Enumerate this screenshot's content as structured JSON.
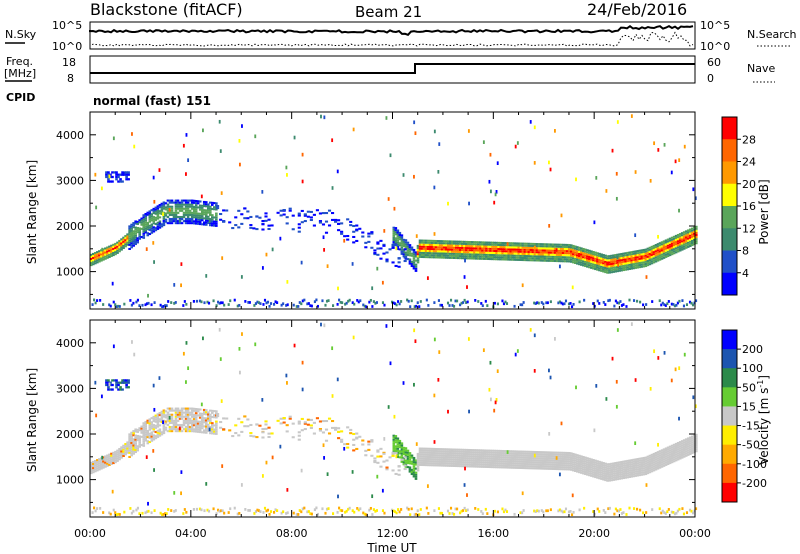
{
  "header": {
    "station": "Blackstone (fitACF)",
    "beam": "Beam 21",
    "date": "24/Feb/2016"
  },
  "noise_panel": {
    "left_label": "N.Sky",
    "right_label": "N.Search",
    "left_ticks": [
      "10^5",
      "10^0"
    ],
    "right_ticks": [
      "10^5",
      "10^0"
    ]
  },
  "freq_panel": {
    "left_label_line1": "Freq.",
    "left_label_line2": "[MHz]",
    "right_label": "Nave",
    "left_ticks": [
      "18",
      "8"
    ],
    "right_ticks": [
      "60",
      "0"
    ]
  },
  "cpid": {
    "label": "CPID",
    "value": "normal (fast) 151"
  },
  "colors": {
    "power_scale": [
      "#0000ff",
      "#2050c8",
      "#3c8a6e",
      "#5aa55a",
      "#ffff00",
      "#ff9900",
      "#ff6600",
      "#ff0000"
    ],
    "velocity_scale": [
      "#0000ff",
      "#1c55b0",
      "#2b8a4a",
      "#66cc33",
      "#c8c8c8",
      "#ffee00",
      "#ffaa00",
      "#ff6600",
      "#ff0000"
    ]
  },
  "chart_data": [
    {
      "type": "heatmap",
      "name": "power",
      "ylabel": "Slant Range [km]",
      "yticks": [
        1000,
        2000,
        3000,
        4000
      ],
      "ylim": [
        180,
        4500
      ],
      "xticks": [
        "00:00",
        "04:00",
        "08:00",
        "12:00",
        "16:00",
        "20:00",
        "00:00"
      ],
      "xlim_hours": [
        0,
        24
      ],
      "colorbar": {
        "label": "Power [dB]",
        "ticks": [
          "28",
          "24",
          "20",
          "16",
          "12",
          "8",
          "4"
        ]
      },
      "echo_band_center_km": [
        {
          "hour": 0.0,
          "range": 1250
        },
        {
          "hour": 1.0,
          "range": 1500
        },
        {
          "hour": 2.0,
          "range": 1950
        },
        {
          "hour": 3.0,
          "range": 2300
        },
        {
          "hour": 4.0,
          "range": 2300
        },
        {
          "hour": 12.0,
          "range": 1800
        },
        {
          "hour": 12.9,
          "range": 1200
        },
        {
          "hour": 13.0,
          "range": 1500
        },
        {
          "hour": 16.0,
          "range": 1450
        },
        {
          "hour": 19.0,
          "range": 1400
        },
        {
          "hour": 20.5,
          "range": 1150
        },
        {
          "hour": 22.0,
          "range": 1300
        },
        {
          "hour": 24.0,
          "range": 1800
        }
      ]
    },
    {
      "type": "heatmap",
      "name": "velocity",
      "ylabel": "Slant Range [km]",
      "yticks": [
        1000,
        2000,
        3000,
        4000
      ],
      "ylim": [
        180,
        4500
      ],
      "xticks": [
        "00:00",
        "04:00",
        "08:00",
        "12:00",
        "16:00",
        "20:00",
        "00:00"
      ],
      "xlabel": "Time UT",
      "xlim_hours": [
        0,
        24
      ],
      "colorbar": {
        "label": "Velocity [m s",
        "label_sup": "-1",
        "label_end": "]",
        "ticks": [
          "200",
          "100",
          "50",
          "15",
          "-15",
          "-50",
          "-100",
          "-200"
        ]
      }
    }
  ]
}
